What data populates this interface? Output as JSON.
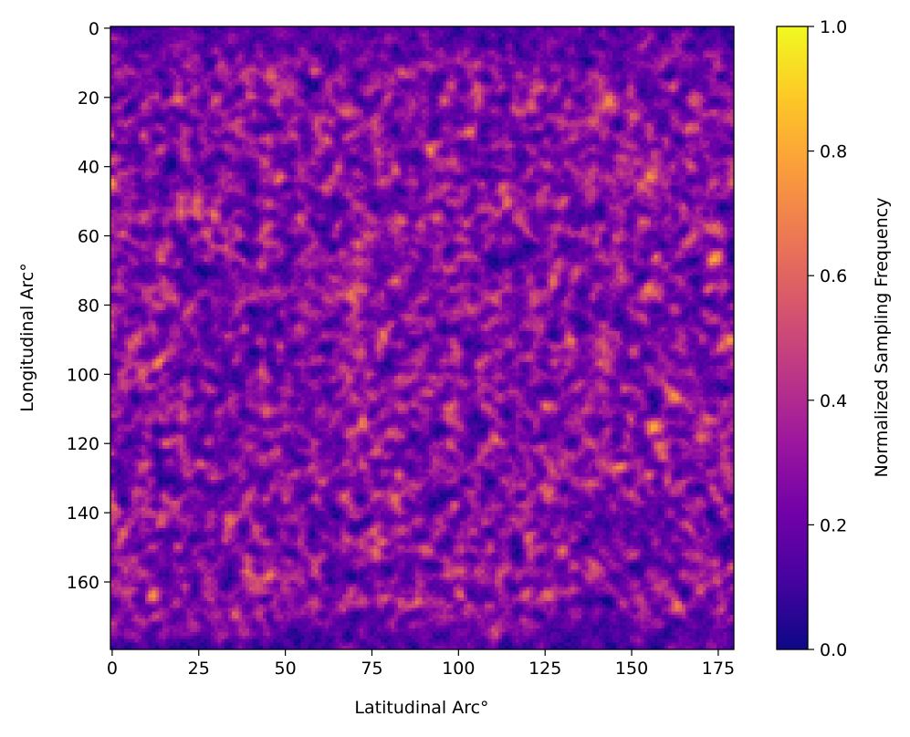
{
  "chart_data": {
    "type": "heatmap",
    "title": "",
    "xlabel": "Latitudinal Arc°",
    "ylabel": "Longitudinal Arc°",
    "grid": false,
    "x_extent": [
      0,
      180
    ],
    "y_extent": [
      0,
      180
    ],
    "y_direction": "top-to-bottom",
    "x_ticks": [
      0,
      25,
      50,
      75,
      100,
      125,
      150,
      175
    ],
    "y_ticks": [
      0,
      20,
      40,
      60,
      80,
      100,
      120,
      140,
      160
    ],
    "x_tick_labels": [
      "0",
      "25",
      "50",
      "75",
      "100",
      "125",
      "150",
      "175"
    ],
    "y_tick_labels": [
      "0",
      "20",
      "40",
      "60",
      "80",
      "100",
      "120",
      "140",
      "160"
    ],
    "colormap": "plasma",
    "value_range": [
      0.0,
      1.0
    ],
    "typical_value_range": [
      0.1,
      0.4
    ],
    "darker_border_bands": [
      "top",
      "bottom"
    ],
    "colorbar": {
      "label": "Normalized Sampling Frequency",
      "ticks": [
        0.0,
        0.2,
        0.4,
        0.6,
        0.8,
        1.0
      ],
      "tick_labels": [
        "0.0",
        "0.2",
        "0.4",
        "0.6",
        "0.8",
        "1.0"
      ],
      "stops": [
        "#0d0887",
        "#46039f",
        "#7201a8",
        "#9c179e",
        "#bd3786",
        "#d8576b",
        "#ed7953",
        "#fb9f3a",
        "#fdca26",
        "#f0f921"
      ]
    }
  }
}
